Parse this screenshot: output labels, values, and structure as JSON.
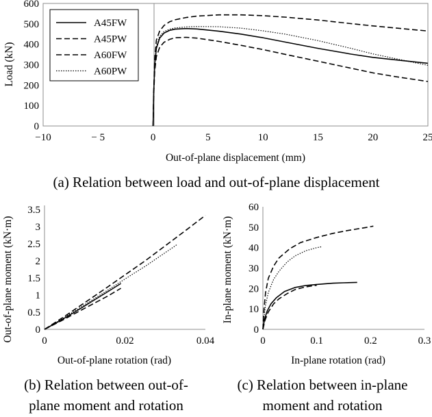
{
  "chart_data": [
    {
      "type": "line",
      "id": "a",
      "xlabel": "Out-of-plane displacement (mm)",
      "ylabel": "Load (kN)",
      "xlim": [
        -10,
        25
      ],
      "ylim": [
        0,
        600
      ],
      "xticks": [
        -10,
        -5,
        0,
        5,
        10,
        15,
        20,
        25
      ],
      "xtick_labels": [
        "−10",
        "− 5",
        "0",
        "5",
        "10",
        "15",
        "20",
        "25"
      ],
      "yticks": [
        0,
        100,
        200,
        300,
        400,
        500,
        600
      ],
      "legend": "top-left",
      "caption": "(a) Relation between load and out-of-plane displacement",
      "series": [
        {
          "name": "A45FW",
          "style": "solid",
          "x": [
            0,
            0.05,
            0.15,
            0.3,
            0.6,
            1,
            1.5,
            2,
            3,
            4,
            6,
            8,
            10,
            12,
            15,
            18,
            20,
            22,
            25
          ],
          "y": [
            0,
            150,
            300,
            380,
            430,
            455,
            468,
            474,
            477,
            475,
            464,
            450,
            432,
            411,
            380,
            352,
            336,
            324,
            307
          ]
        },
        {
          "name": "A45PW",
          "style": "dashed",
          "x": [
            0,
            0.05,
            0.15,
            0.3,
            0.6,
            1,
            1.5,
            2,
            3,
            4,
            6,
            8,
            10,
            12,
            15,
            18,
            20,
            22,
            25
          ],
          "y": [
            0,
            160,
            330,
            420,
            465,
            492,
            510,
            520,
            531,
            538,
            544,
            544,
            540,
            533,
            519,
            501,
            490,
            480,
            465
          ]
        },
        {
          "name": "A60FW",
          "style": "dashed",
          "x": [
            0,
            0.05,
            0.15,
            0.3,
            0.6,
            1,
            1.5,
            2,
            3,
            4,
            6,
            8,
            10,
            12,
            15,
            18,
            20,
            22,
            25
          ],
          "y": [
            0,
            140,
            270,
            340,
            385,
            410,
            424,
            432,
            434,
            430,
            414,
            395,
            374,
            351,
            317,
            283,
            260,
            242,
            218
          ]
        },
        {
          "name": "A60PW",
          "style": "dotted",
          "x": [
            0,
            0.05,
            0.15,
            0.3,
            0.6,
            1,
            1.5,
            2,
            3,
            4,
            6,
            8,
            10,
            12,
            15,
            18,
            20,
            22,
            25
          ],
          "y": [
            0,
            150,
            300,
            390,
            440,
            462,
            474,
            480,
            485,
            487,
            486,
            479,
            466,
            450,
            418,
            380,
            353,
            330,
            297
          ]
        }
      ]
    },
    {
      "type": "line",
      "id": "b",
      "xlabel": "Out-of-plane rotation (rad)",
      "ylabel": "Out-of-plane moment (kN·m)",
      "xlim": [
        0,
        0.04
      ],
      "ylim": [
        0,
        3.5
      ],
      "xticks": [
        0,
        0.02,
        0.04
      ],
      "xtick_labels": [
        "0",
        "0.02",
        "0.04"
      ],
      "yticks": [
        0,
        0.5,
        1,
        1.5,
        2,
        2.5,
        3,
        3.5
      ],
      "ytick_labels": [
        "0",
        "0.5",
        "1",
        "1.5",
        "2",
        "2.5",
        "3",
        "3.5"
      ],
      "caption_lines": [
        "(b) Relation between out-of-",
        "plane moment and rotation"
      ],
      "series": [
        {
          "name": "A45FW",
          "style": "solid",
          "x": [
            0,
            0.004,
            0.008,
            0.012,
            0.016,
            0.019
          ],
          "y": [
            0,
            0.26,
            0.54,
            0.83,
            1.12,
            1.34
          ]
        },
        {
          "name": "A45PW",
          "style": "dashed",
          "x": [
            0,
            0.005,
            0.01,
            0.015,
            0.02,
            0.025,
            0.03,
            0.035,
            0.04
          ],
          "y": [
            0,
            0.38,
            0.78,
            1.18,
            1.59,
            2.0,
            2.44,
            2.88,
            3.33
          ]
        },
        {
          "name": "A60FW",
          "style": "dashed",
          "x": [
            0,
            0.004,
            0.008,
            0.012,
            0.016,
            0.019
          ],
          "y": [
            0,
            0.24,
            0.49,
            0.74,
            0.99,
            1.2
          ]
        },
        {
          "name": "A60PW",
          "style": "dotted",
          "x": [
            0,
            0.005,
            0.01,
            0.015,
            0.02,
            0.025,
            0.03,
            0.033
          ],
          "y": [
            0,
            0.35,
            0.72,
            1.09,
            1.47,
            1.84,
            2.24,
            2.48
          ]
        }
      ]
    },
    {
      "type": "line",
      "id": "c",
      "xlabel": "In-plane rotation (rad)",
      "ylabel": "In-plane moment (kN·m)",
      "xlim": [
        0,
        0.3
      ],
      "ylim": [
        0,
        60
      ],
      "xticks": [
        0,
        0.1,
        0.2,
        0.3
      ],
      "xtick_labels": [
        "0",
        "0.1",
        "0.2",
        "0.3"
      ],
      "yticks": [
        0,
        10,
        20,
        30,
        40,
        50,
        60
      ],
      "caption_lines": [
        "(c) Relation between in-plane",
        "moment and rotation"
      ],
      "series": [
        {
          "name": "A45FW",
          "style": "solid",
          "x": [
            0,
            0.003,
            0.008,
            0.015,
            0.025,
            0.04,
            0.06,
            0.08,
            0.1,
            0.13,
            0.15,
            0.175
          ],
          "y": [
            0,
            5,
            9,
            12.5,
            15.5,
            18.5,
            20.5,
            21.5,
            22,
            22.6,
            22.8,
            23
          ]
        },
        {
          "name": "A45PW",
          "style": "dashed",
          "x": [
            0,
            0.002,
            0.005,
            0.01,
            0.02,
            0.03,
            0.05,
            0.07,
            0.1,
            0.13,
            0.16,
            0.19,
            0.205
          ],
          "y": [
            0,
            10,
            18,
            25,
            31,
            35,
            39.5,
            42.5,
            45,
            47,
            48.5,
            49.8,
            50.5
          ]
        },
        {
          "name": "A60FW",
          "style": "dashed",
          "x": [
            0,
            0.004,
            0.01,
            0.02,
            0.03,
            0.045,
            0.06,
            0.08,
            0.1
          ],
          "y": [
            0,
            4.5,
            8.5,
            12.5,
            15,
            17.5,
            19.5,
            20.8,
            21.6
          ]
        },
        {
          "name": "A60PW",
          "style": "dotted",
          "x": [
            0,
            0.002,
            0.005,
            0.01,
            0.02,
            0.03,
            0.045,
            0.06,
            0.08,
            0.1,
            0.11
          ],
          "y": [
            0,
            6,
            12,
            18,
            24.5,
            28.5,
            33,
            36,
            38.5,
            40,
            40.5
          ]
        }
      ]
    }
  ]
}
